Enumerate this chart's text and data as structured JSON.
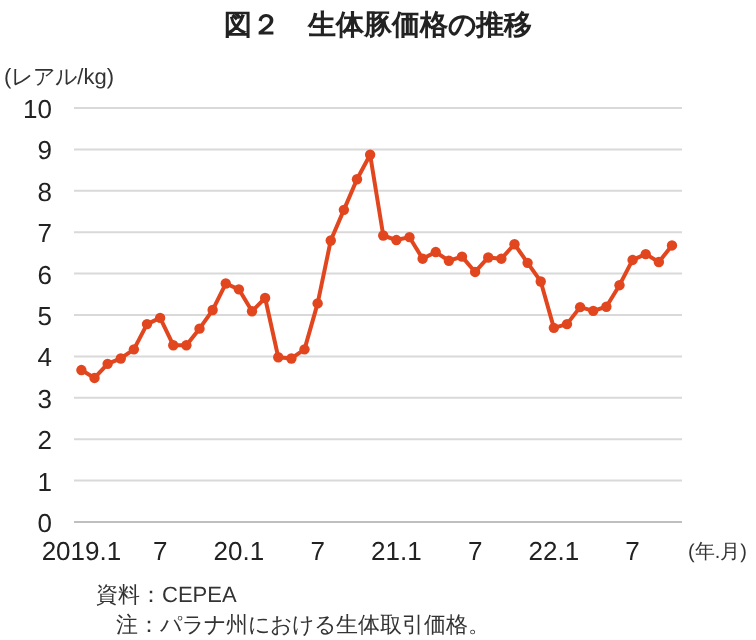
{
  "chart_data": {
    "type": "line",
    "title": "図２　生体豚価格の推移",
    "ylabel": "(レアル/kg)",
    "xlabel": "(年.月)",
    "categories": [
      "2019.1",
      null,
      null,
      null,
      null,
      null,
      "7",
      null,
      null,
      null,
      null,
      null,
      "20.1",
      null,
      null,
      null,
      null,
      null,
      "7",
      null,
      null,
      null,
      null,
      null,
      "21.1",
      null,
      null,
      null,
      null,
      null,
      "7",
      null,
      null,
      null,
      null,
      null,
      "22.1",
      null,
      null,
      null,
      null,
      null,
      "7",
      null,
      null,
      null
    ],
    "series": [
      {
        "color": "#e2461e",
        "values": [
          3.67,
          3.48,
          3.82,
          3.95,
          4.17,
          4.78,
          4.93,
          4.27,
          4.27,
          4.67,
          5.12,
          5.76,
          5.62,
          5.09,
          5.41,
          3.98,
          3.95,
          4.17,
          5.28,
          6.8,
          7.54,
          8.28,
          8.87,
          6.92,
          6.81,
          6.88,
          6.36,
          6.52,
          6.31,
          6.41,
          6.04,
          6.39,
          6.36,
          6.71,
          6.26,
          5.81,
          4.69,
          4.78,
          5.19,
          5.1,
          5.2,
          5.72,
          6.33,
          6.47,
          6.28,
          6.68
        ]
      }
    ],
    "ylim": [
      0,
      10
    ],
    "yticks": [
      0,
      1,
      2,
      3,
      4,
      5,
      6,
      7,
      8,
      9,
      10
    ],
    "grid": "y",
    "marker": "circle",
    "line_style": "solid",
    "annotations": [
      "資料：CEPEA",
      "注：パラナ州における生体取引価格。"
    ]
  }
}
